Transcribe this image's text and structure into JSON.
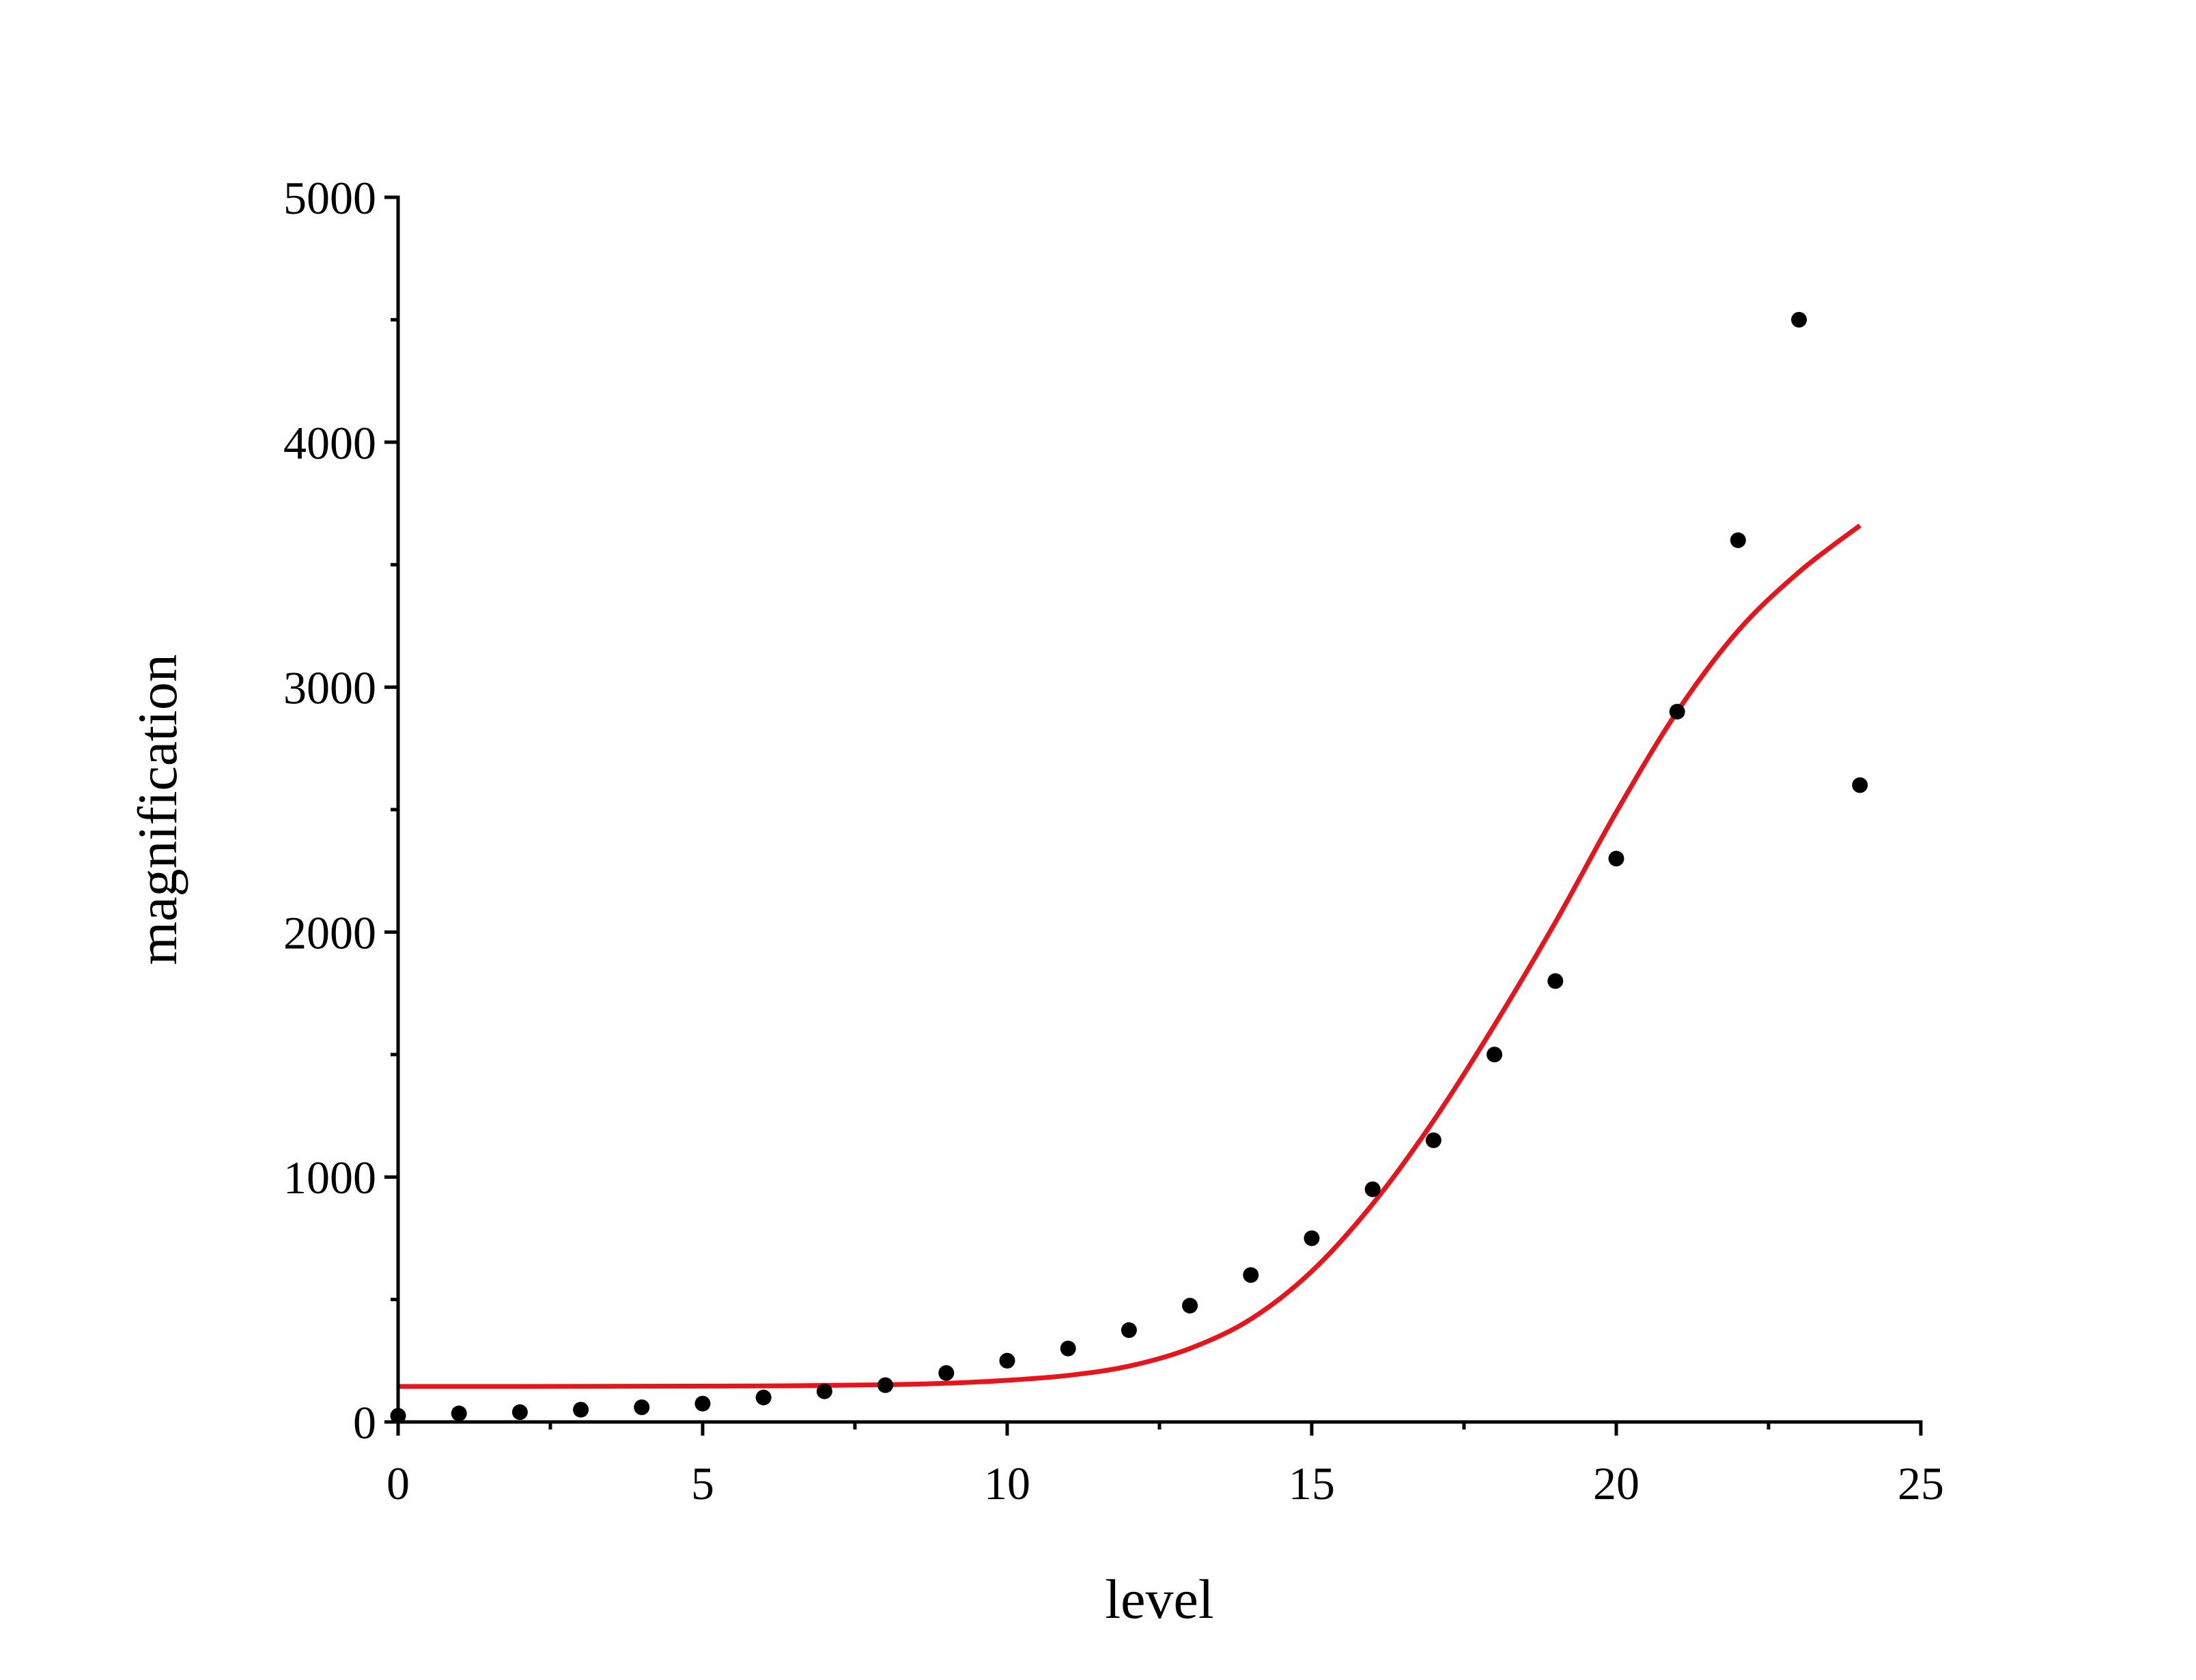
{
  "chart_data": {
    "type": "scatter",
    "xlabel": "level",
    "ylabel": "magnification",
    "xlim": [
      0,
      25
    ],
    "ylim": [
      0,
      5000
    ],
    "x_ticks": [
      0,
      5,
      10,
      15,
      20,
      25
    ],
    "x_tick_labels": [
      "0",
      "5",
      "10",
      "15",
      "20",
      "25"
    ],
    "x_minor_step": 2.5,
    "y_ticks": [
      0,
      1000,
      2000,
      3000,
      4000,
      5000
    ],
    "y_tick_labels": [
      "0",
      "1000",
      "2000",
      "3000",
      "4000",
      "5000"
    ],
    "y_minor_step": 500,
    "grid": false,
    "legend": "none",
    "series": [
      {
        "kind": "points",
        "color": "#000000",
        "x": [
          0,
          1,
          2,
          3,
          4,
          5,
          6,
          7,
          8,
          9,
          10,
          11,
          12,
          13,
          14,
          15,
          16,
          17,
          18,
          19,
          20,
          21,
          22,
          23,
          24
        ],
        "y": [
          25,
          35,
          40,
          50,
          60,
          75,
          100,
          125,
          150,
          200,
          250,
          300,
          375,
          475,
          600,
          750,
          950,
          1150,
          1500,
          1800,
          2300,
          2900,
          3600,
          4500,
          2600
        ]
      },
      {
        "kind": "line",
        "color": "#e8141c",
        "x": [
          0,
          2,
          4,
          6,
          8,
          9,
          10,
          11,
          12,
          13,
          14,
          15,
          16,
          17,
          18,
          19,
          20,
          21,
          22,
          23,
          24
        ],
        "y": [
          145,
          145,
          146,
          147,
          152,
          158,
          170,
          190,
          228,
          300,
          420,
          615,
          890,
          1230,
          1620,
          2040,
          2490,
          2900,
          3230,
          3470,
          3660
        ]
      }
    ]
  }
}
